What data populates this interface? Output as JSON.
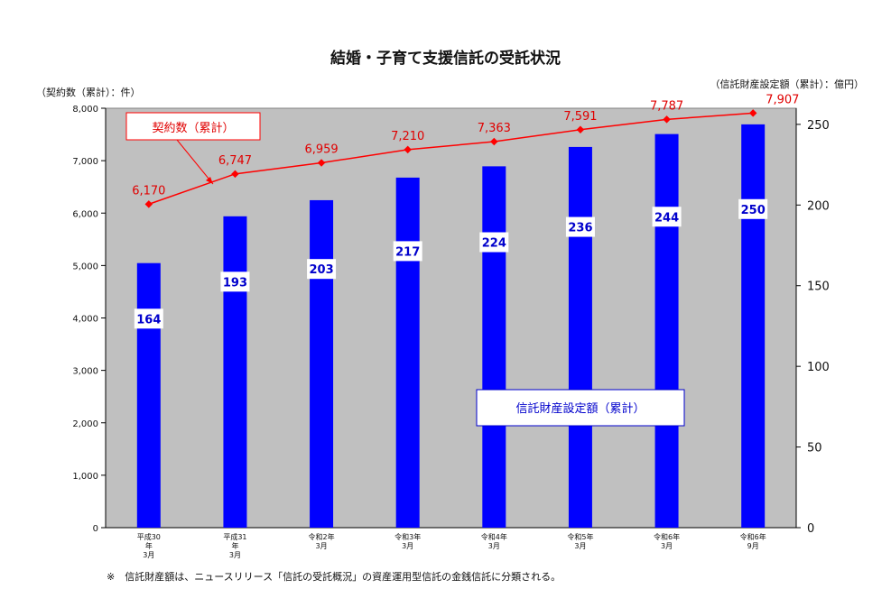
{
  "title": "結婚・子育て支援信託の受託状況",
  "left_axis_unit": "（契約数（累計）：件）",
  "right_axis_unit": "（信託財産設定額（累計）：億円）",
  "footnote": "※　信託財産額は、ニュースリリース「信託の受託概況」の資産運用型信託の金銭信託に分類される。",
  "colors": {
    "bar": "#0000ff",
    "line": "#ff0000",
    "plot_bg": "#c0c0c0"
  },
  "chart_data": {
    "type": "bar+line",
    "categories": [
      [
        "平成30",
        "年",
        "3月"
      ],
      [
        "平成31",
        "年",
        "3月"
      ],
      [
        "令和2年",
        "3月"
      ],
      [
        "令和3年",
        "3月"
      ],
      [
        "令和4年",
        "3月"
      ],
      [
        "令和5年",
        "3月"
      ],
      [
        "令和6年",
        "3月"
      ],
      [
        "令和6年",
        "9月"
      ]
    ],
    "series": [
      {
        "name": "信託財産設定額（累計）",
        "type": "bar",
        "axis": "right",
        "values": [
          164,
          193,
          203,
          217,
          224,
          236,
          244,
          250
        ],
        "labels": [
          "164",
          "193",
          "203",
          "217",
          "224",
          "236",
          "244",
          "250"
        ]
      },
      {
        "name": "契約数（累計）",
        "type": "line",
        "axis": "left",
        "values": [
          6170,
          6747,
          6959,
          7210,
          7363,
          7591,
          7787,
          7907
        ],
        "labels": [
          "6,170",
          "6,747",
          "6,959",
          "7,210",
          "7,363",
          "7,591",
          "7,787",
          "7,907"
        ]
      }
    ],
    "y_left": {
      "range": [
        0,
        8000
      ],
      "ticks": [
        0,
        1000,
        2000,
        3000,
        4000,
        5000,
        6000,
        7000,
        8000
      ],
      "tick_labels": [
        "0",
        "1,000",
        "2,000",
        "3,000",
        "4,000",
        "5,000",
        "6,000",
        "7,000",
        "8,000"
      ]
    },
    "y_right": {
      "range": [
        0,
        260
      ],
      "ticks": [
        0,
        50,
        100,
        150,
        200,
        250
      ],
      "tick_labels": [
        "0",
        "50",
        "100",
        "150",
        "200",
        "250"
      ]
    },
    "grid": false
  }
}
